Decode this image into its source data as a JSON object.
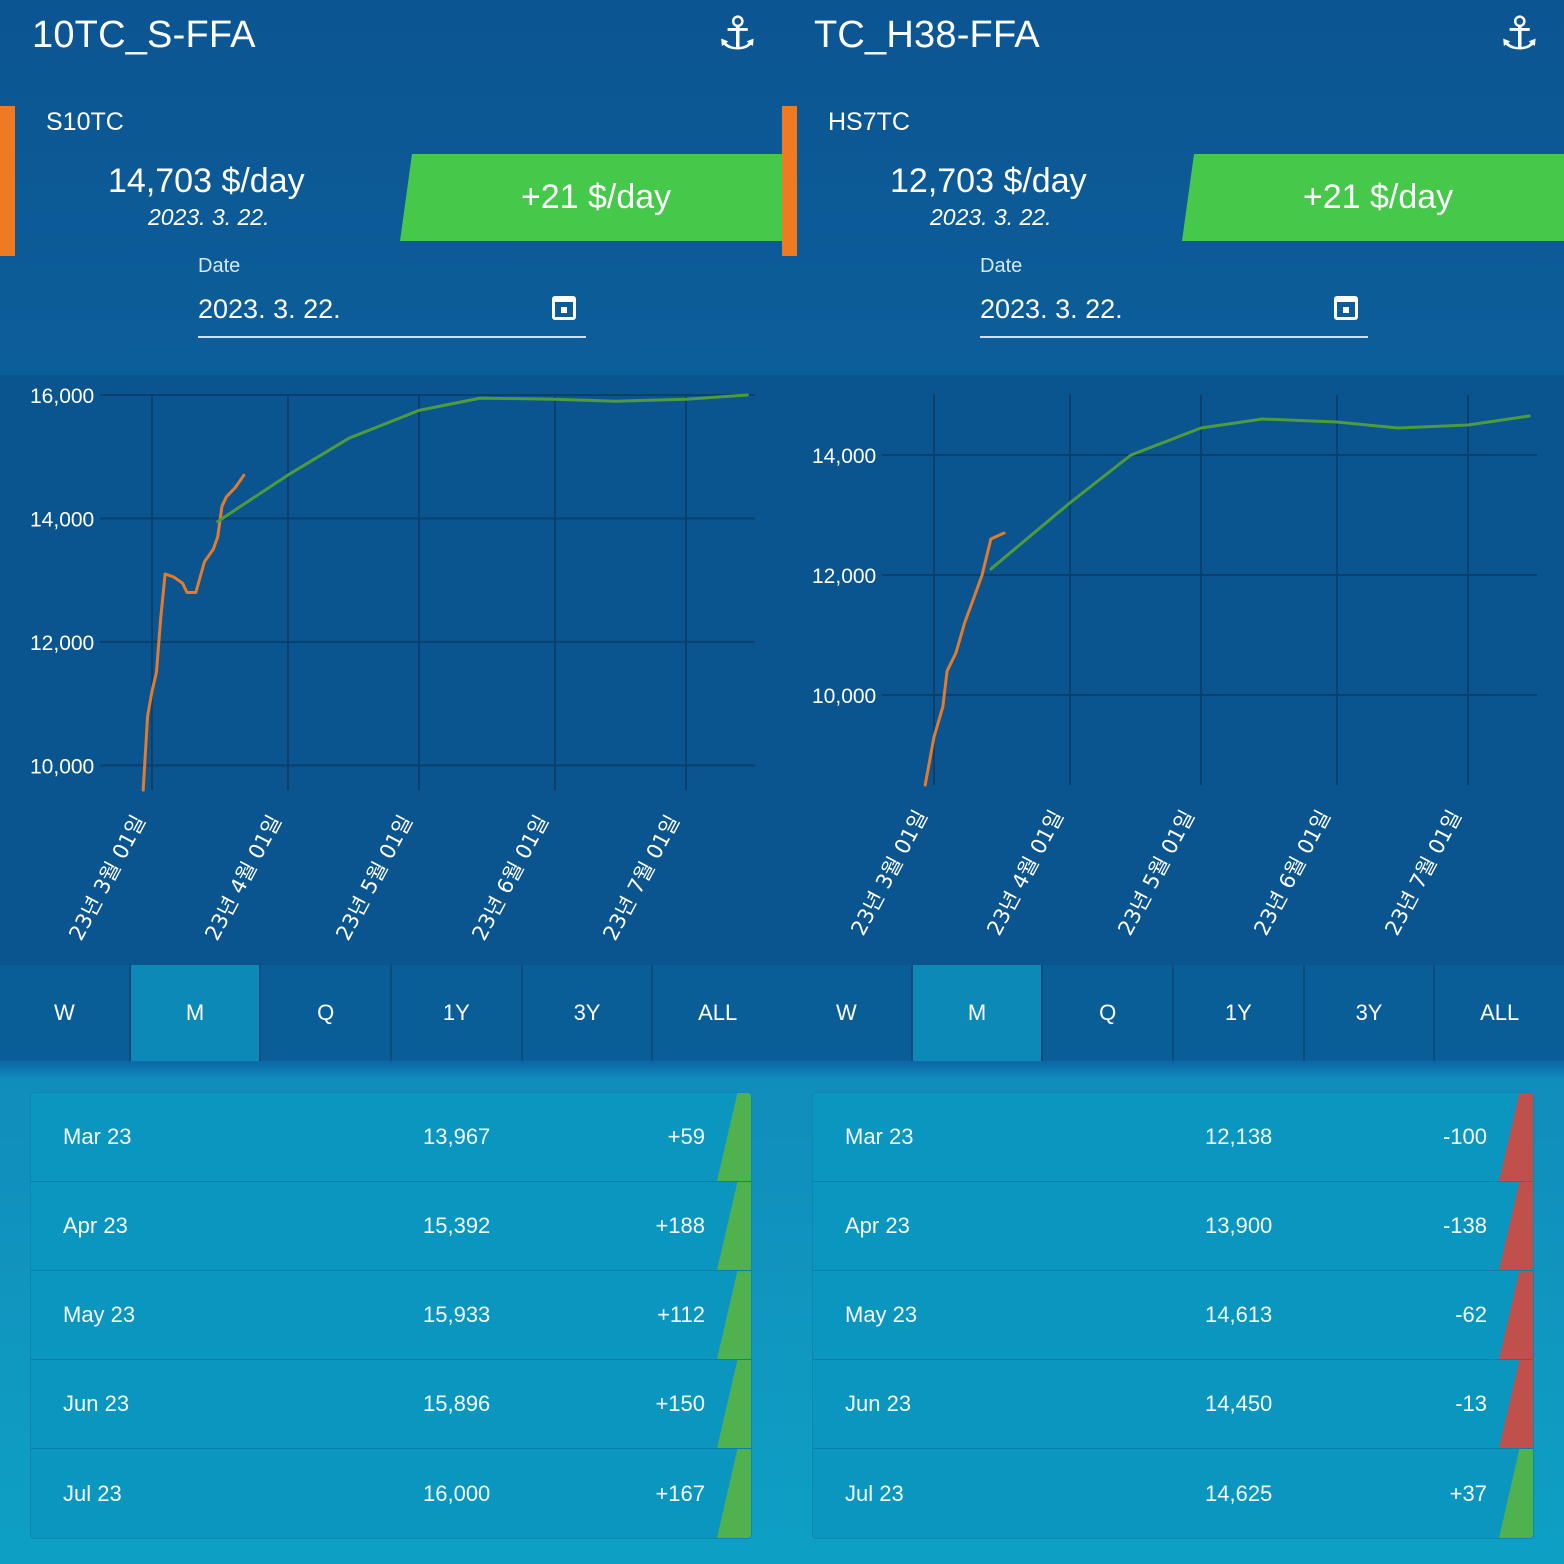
{
  "panels": [
    {
      "title": "10TC_S-FFA",
      "code": "S10TC",
      "price": "14,703 $/day",
      "price_date": "2023. 3. 22.",
      "change": "+21 $/day",
      "date_label": "Date",
      "date_value": "2023. 3. 22.",
      "tabs": [
        "W",
        "M",
        "Q",
        "1Y",
        "3Y",
        "ALL"
      ],
      "active_tab": "M",
      "rows": [
        {
          "month": "Mar 23",
          "value": "13,967",
          "delta": "+59",
          "direction": "up"
        },
        {
          "month": "Apr 23",
          "value": "15,392",
          "delta": "+188",
          "direction": "up"
        },
        {
          "month": "May 23",
          "value": "15,933",
          "delta": "+112",
          "direction": "up"
        },
        {
          "month": "Jun 23",
          "value": "15,896",
          "delta": "+150",
          "direction": "up"
        },
        {
          "month": "Jul 23",
          "value": "16,000",
          "delta": "+167",
          "direction": "up"
        }
      ]
    },
    {
      "title": "TC_H38-FFA",
      "code": "HS7TC",
      "price": "12,703 $/day",
      "price_date": "2023. 3. 22.",
      "change": "+21 $/day",
      "date_label": "Date",
      "date_value": "2023. 3. 22.",
      "tabs": [
        "W",
        "M",
        "Q",
        "1Y",
        "3Y",
        "ALL"
      ],
      "active_tab": "M",
      "rows": [
        {
          "month": "Mar 23",
          "value": "12,138",
          "delta": "-100",
          "direction": "down"
        },
        {
          "month": "Apr 23",
          "value": "13,900",
          "delta": "-138",
          "direction": "down"
        },
        {
          "month": "May 23",
          "value": "14,613",
          "delta": "-62",
          "direction": "down"
        },
        {
          "month": "Jun 23",
          "value": "14,450",
          "delta": "-13",
          "direction": "down"
        },
        {
          "month": "Jul 23",
          "value": "14,625",
          "delta": "+37",
          "direction": "up"
        }
      ]
    }
  ],
  "chart_data": [
    {
      "type": "line",
      "y_ticks": [
        "16,000",
        "14,000",
        "12,000",
        "10,000"
      ],
      "ylim": [
        9600,
        16000
      ],
      "x_ticks": [
        "23년 3월 01일",
        "23년 4월 01일",
        "23년 5월 01일",
        "23년 6월 01일",
        "23년 7월 01일"
      ],
      "series": [
        {
          "color": "#e37a2c",
          "points": [
            [
              "2023-02-27",
              9600
            ],
            [
              "2023-02-28",
              10800
            ],
            [
              "2023-03-01",
              11200
            ],
            [
              "2023-03-02",
              11500
            ],
            [
              "2023-03-03",
              12400
            ],
            [
              "2023-03-04",
              13100
            ],
            [
              "2023-03-06",
              13050
            ],
            [
              "2023-03-08",
              12950
            ],
            [
              "2023-03-09",
              12800
            ],
            [
              "2023-03-11",
              12800
            ],
            [
              "2023-03-13",
              13300
            ],
            [
              "2023-03-15",
              13500
            ],
            [
              "2023-03-16",
              13700
            ],
            [
              "2023-03-17",
              14200
            ],
            [
              "2023-03-18",
              14350
            ],
            [
              "2023-03-20",
              14500
            ],
            [
              "2023-03-22",
              14700
            ]
          ]
        },
        {
          "color": "#4d9b3c",
          "points": [
            [
              "2023-03-16",
              13950
            ],
            [
              "2023-04-01",
              14700
            ],
            [
              "2023-04-15",
              15300
            ],
            [
              "2023-05-01",
              15750
            ],
            [
              "2023-05-15",
              15950
            ],
            [
              "2023-06-01",
              15930
            ],
            [
              "2023-06-15",
              15900
            ],
            [
              "2023-07-01",
              15930
            ],
            [
              "2023-07-15",
              16000
            ]
          ]
        }
      ]
    },
    {
      "type": "line",
      "y_ticks": [
        "14,000",
        "12,000",
        "10,000"
      ],
      "ylim": [
        8500,
        15000
      ],
      "x_ticks": [
        "23년 3월 01일",
        "23년 4월 01일",
        "23년 5월 01일",
        "23년 6월 01일",
        "23년 7월 01일"
      ],
      "series": [
        {
          "color": "#e37a2c",
          "points": [
            [
              "2023-02-27",
              8500
            ],
            [
              "2023-03-01",
              9300
            ],
            [
              "2023-03-03",
              9800
            ],
            [
              "2023-03-04",
              10400
            ],
            [
              "2023-03-06",
              10700
            ],
            [
              "2023-03-08",
              11200
            ],
            [
              "2023-03-10",
              11600
            ],
            [
              "2023-03-12",
              12000
            ],
            [
              "2023-03-14",
              12600
            ],
            [
              "2023-03-17",
              12700
            ]
          ]
        },
        {
          "color": "#4d9b3c",
          "points": [
            [
              "2023-03-14",
              12100
            ],
            [
              "2023-04-01",
              13200
            ],
            [
              "2023-04-15",
              14000
            ],
            [
              "2023-05-01",
              14450
            ],
            [
              "2023-05-15",
              14600
            ],
            [
              "2023-06-01",
              14550
            ],
            [
              "2023-06-15",
              14450
            ],
            [
              "2023-07-01",
              14500
            ],
            [
              "2023-07-15",
              14650
            ]
          ]
        }
      ]
    }
  ]
}
